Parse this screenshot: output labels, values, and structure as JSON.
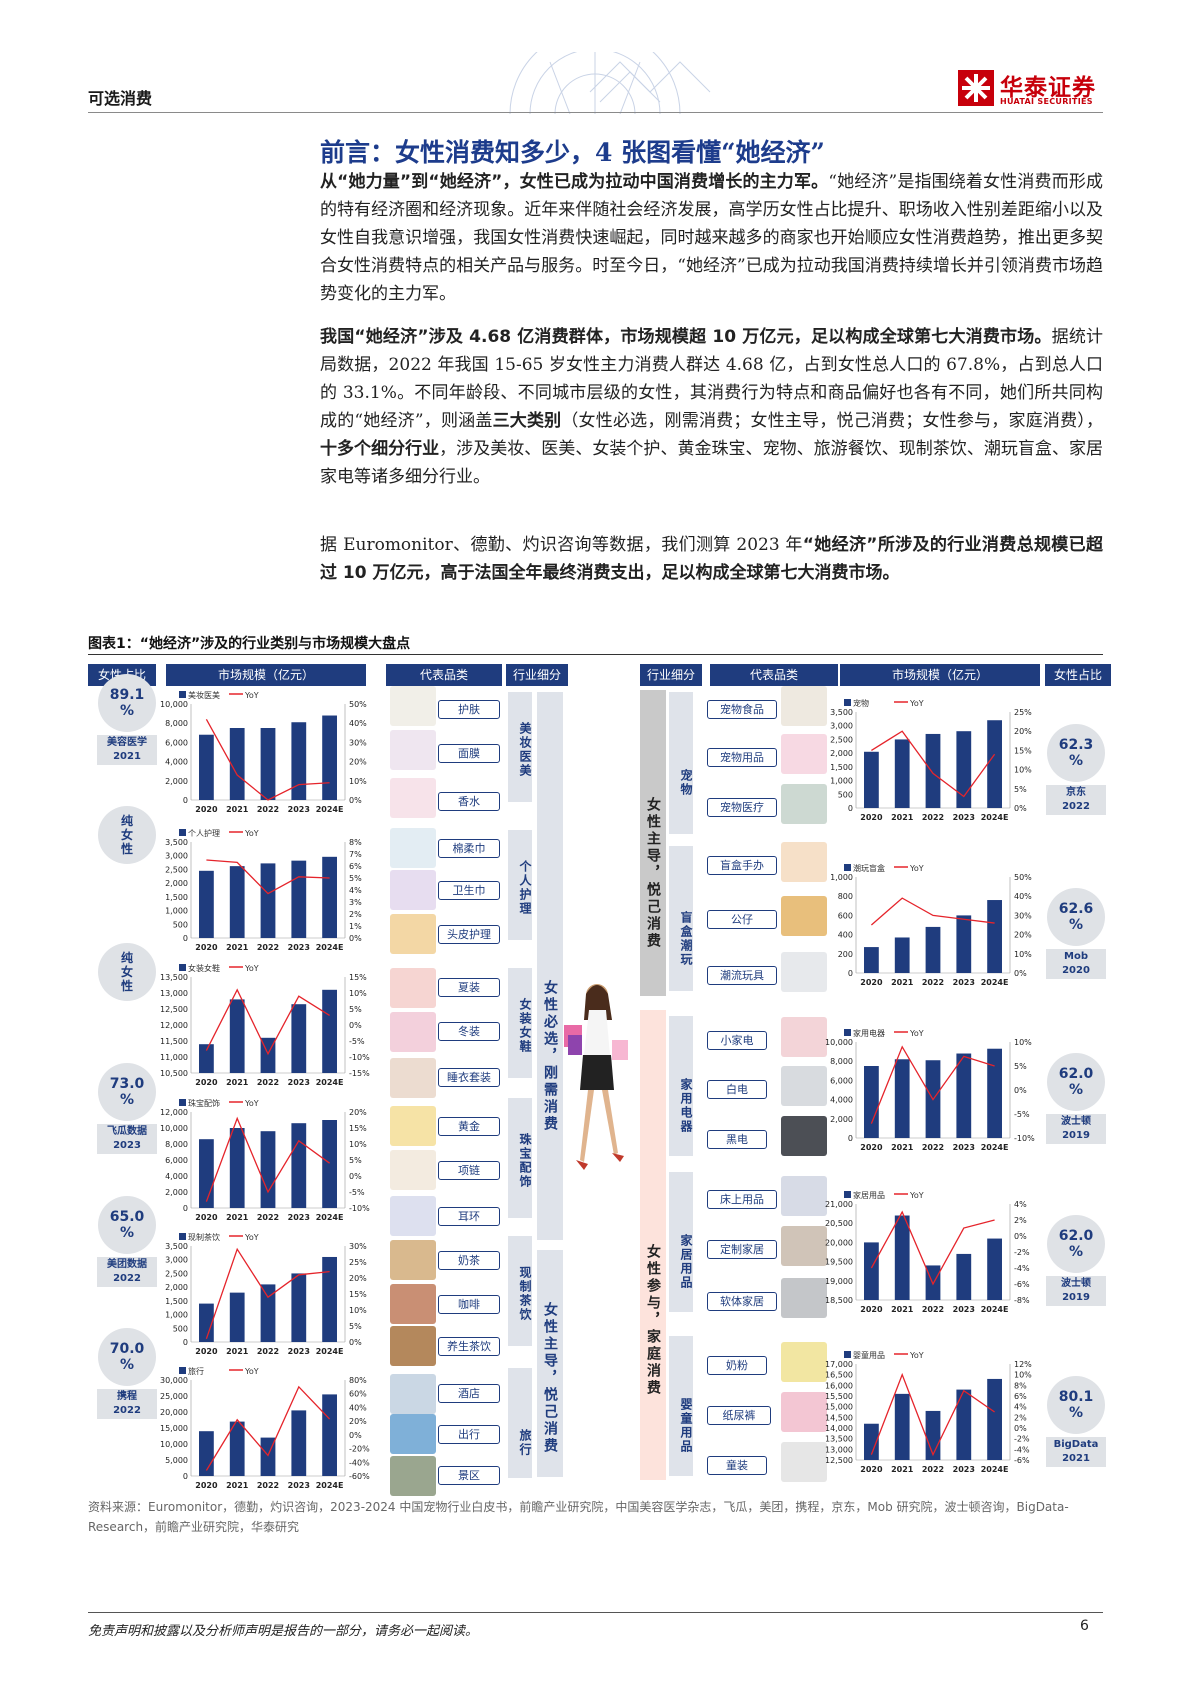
{
  "header": {
    "sector": "可选消费",
    "logo_cn": "华泰证券",
    "logo_en": "HUATAI SECURITIES"
  },
  "title": "前言：女性消费知多少，4 张图看懂“她经济”",
  "para1": {
    "bold": "从“她力量”到“她经济”，女性已成为拉动中国消费增长的主力军。",
    "text": "“她经济”是指围绕着女性消费而形成的特有经济圈和经济现象。近年来伴随社会经济发展，高学历女性占比提升、职场收入性别差距缩小以及女性自我意识增强，我国女性消费快速崛起，同时越来越多的商家也开始顺应女性消费趋势，推出更多契合女性消费特点的相关产品与服务。时至今日，“她经济”已成为拉动我国消费持续增长并引领消费市场趋势变化的主力军。"
  },
  "para2": {
    "bold1": "我国“她经济”涉及 4.68 亿消费群体，市场规模超 10 万亿元，足以构成全球第七大消费市场。",
    "text1": "据统计局数据，2022 年我国 15-65 岁女性主力消费人群达 4.68 亿，占到女性总人口的 67.8%，占到总人口的 33.1%。不同年龄段、不同城市层级的女性，其消费行为特点和商品偏好也各有不同，她们所共同构成的“她经济”，则涵盖",
    "bold2": "三大类别",
    "text2": "（女性必选，刚需消费；女性主导，悦己消费；女性参与，家庭消费），",
    "bold3": "十多个细分行业",
    "text3": "，涉及美妆、医美、女装个护、黄金珠宝、宠物、旅游餐饮、现制茶饮、潮玩盲盒、家居家电等诸多细分行业。"
  },
  "para3": {
    "text": "据 Euromonitor、德勤、灼识咨询等数据，我们测算 2023 年",
    "bold": "“她经济”所涉及的行业消费总规模已超过 10 万亿元，高于法国全年最终消费支出，足以构成全球第七大消费市场。"
  },
  "figure": {
    "caption": "图表1：“她经济”涉及的行业类别与市场规模大盘点",
    "col_heads": {
      "l_share": "女性占比",
      "l_market": "市场规模（亿元）",
      "l_product": "代表品类",
      "l_industry": "行业细分",
      "r_industry": "行业细分",
      "r_product": "代表品类",
      "r_market": "市场规模（亿元）",
      "r_share": "女性占比"
    },
    "left_cat1": "女性必选，刚需消费",
    "left_cat2": "女性主导，悦己消费",
    "right_cat1": "女性主导，悦己消费",
    "right_cat2": "女性参与，家庭消费",
    "left_shares": [
      {
        "pct": "89.1\n%",
        "src": "美容医学\n2021"
      },
      {
        "pct": "纯\n女\n性",
        "src": ""
      },
      {
        "pct": "纯\n女\n性",
        "src": ""
      },
      {
        "pct": "73.0\n%",
        "src": "飞瓜数据\n2023"
      },
      {
        "pct": "65.0\n%",
        "src": "美团数据\n2022"
      },
      {
        "pct": "70.0\n%",
        "src": "携程\n2022"
      }
    ],
    "right_shares": [
      {
        "pct": "62.3\n%",
        "src": "京东\n2022"
      },
      {
        "pct": "62.6\n%",
        "src": "Mob\n2020"
      },
      {
        "pct": "62.0\n%",
        "src": "波士顿\n2019"
      },
      {
        "pct": "62.0\n%",
        "src": "波士顿\n2019"
      },
      {
        "pct": "80.1\n%",
        "src": "BigData\n2021"
      }
    ],
    "left_industries": [
      "美妆医美",
      "个人护理",
      "女装女鞋",
      "珠宝配饰",
      "现制茶饮",
      "旅行"
    ],
    "right_industries": [
      "宠物",
      "盲盒潮玩",
      "家用电器",
      "家居用品",
      "婴童用品"
    ],
    "left_products": [
      "护肤",
      "面膜",
      "香水",
      "棉柔巾",
      "卫生巾",
      "头皮护理",
      "夏装",
      "冬装",
      "睡衣套装",
      "黄金",
      "项链",
      "耳环",
      "奶茶",
      "咖啡",
      "养生茶饮",
      "酒店",
      "出行",
      "景区"
    ],
    "right_products": [
      "宠物食品",
      "宠物用品",
      "宠物医疗",
      "盲盒手办",
      "公仔",
      "潮流玩具",
      "小家电",
      "白电",
      "黑电",
      "床上用品",
      "定制家居",
      "软体家居",
      "奶粉",
      "纸尿裤",
      "童装"
    ]
  },
  "chart_data": [
    {
      "type": "bar",
      "series_name": "美妆医美",
      "yoy_name": "YoY",
      "categories": [
        "2020",
        "2021",
        "2022",
        "2023",
        "2024E"
      ],
      "values": [
        6800,
        7500,
        7500,
        8100,
        8800
      ],
      "yoy": [
        42,
        13,
        0,
        8,
        9
      ],
      "ylim": [
        0,
        10000
      ],
      "yticks": [
        "0",
        "2,000",
        "4,000",
        "6,000",
        "8,000",
        "10,000"
      ],
      "y2lim": [
        0,
        50
      ],
      "y2ticks": [
        "0%",
        "10%",
        "20%",
        "30%",
        "40%",
        "50%"
      ]
    },
    {
      "type": "bar",
      "series_name": "个人护理",
      "yoy_name": "YoY",
      "categories": [
        "2020",
        "2021",
        "2022",
        "2023",
        "2024E"
      ],
      "values": [
        2450,
        2620,
        2720,
        2820,
        2960
      ],
      "yoy": [
        6.5,
        6.3,
        3.7,
        5.1,
        5
      ],
      "ylim": [
        0,
        3500
      ],
      "yticks": [
        "0",
        "500",
        "1,000",
        "1,500",
        "2,000",
        "2,500",
        "3,000",
        "3,500"
      ],
      "y2lim": [
        0,
        8
      ],
      "y2ticks": [
        "0%",
        "1%",
        "2%",
        "3%",
        "4%",
        "5%",
        "6%",
        "7%",
        "8%"
      ]
    },
    {
      "type": "bar",
      "series_name": "女装女鞋",
      "yoy_name": "YoY",
      "categories": [
        "2020",
        "2021",
        "2022",
        "2023",
        "2024E"
      ],
      "values": [
        11400,
        12800,
        11600,
        12650,
        13100
      ],
      "yoy": [
        -8,
        11,
        -9,
        9,
        3
      ],
      "ylim": [
        10500,
        13500
      ],
      "yticks": [
        "10,500",
        "11,000",
        "11,500",
        "12,000",
        "12,500",
        "13,000",
        "13,500"
      ],
      "y2lim": [
        -15,
        15
      ],
      "y2ticks": [
        "-15%",
        "-10%",
        "-5%",
        "0%",
        "5%",
        "10%",
        "15%"
      ]
    },
    {
      "type": "bar",
      "series_name": "珠宝配饰",
      "yoy_name": "YoY",
      "categories": [
        "2020",
        "2021",
        "2022",
        "2023",
        "2024E"
      ],
      "values": [
        8600,
        10000,
        9600,
        10600,
        11000
      ],
      "yoy": [
        -8,
        18,
        -5,
        11,
        4
      ],
      "ylim": [
        0,
        12000
      ],
      "yticks": [
        "0",
        "2,000",
        "4,000",
        "6,000",
        "8,000",
        "10,000",
        "12,000"
      ],
      "y2lim": [
        -10,
        20
      ],
      "y2ticks": [
        "-10%",
        "-5%",
        "0%",
        "5%",
        "10%",
        "15%",
        "20%"
      ]
    },
    {
      "type": "bar",
      "series_name": "现制茶饮",
      "yoy_name": "YoY",
      "categories": [
        "2020",
        "2021",
        "2022",
        "2023",
        "2024E"
      ],
      "values": [
        1400,
        1800,
        2100,
        2500,
        3100
      ],
      "yoy": [
        1,
        29,
        14,
        21,
        22
      ],
      "ylim": [
        0,
        3500
      ],
      "yticks": [
        "0",
        "500",
        "1,000",
        "1,500",
        "2,000",
        "2,500",
        "3,000",
        "3,500"
      ],
      "y2lim": [
        0,
        30
      ],
      "y2ticks": [
        "0%",
        "5%",
        "10%",
        "15%",
        "20%",
        "25%",
        "30%"
      ]
    },
    {
      "type": "bar",
      "series_name": "旅行",
      "yoy_name": "YoY",
      "categories": [
        "2020",
        "2021",
        "2022",
        "2023",
        "2024E"
      ],
      "values": [
        14000,
        17000,
        12000,
        20500,
        25500
      ],
      "yoy": [
        -52,
        22,
        -30,
        70,
        23
      ],
      "ylim": [
        0,
        30000
      ],
      "yticks": [
        "0",
        "5,000",
        "10,000",
        "15,000",
        "20,000",
        "25,000",
        "30,000"
      ],
      "y2lim": [
        -60,
        80
      ],
      "y2ticks": [
        "-60%",
        "-40%",
        "-20%",
        "0%",
        "20%",
        "40%",
        "60%",
        "80%"
      ]
    },
    {
      "type": "bar",
      "series_name": "宠物",
      "yoy_name": "YoY",
      "categories": [
        "2020",
        "2021",
        "2022",
        "2023",
        "2024E"
      ],
      "values": [
        2050,
        2500,
        2700,
        2800,
        3200
      ],
      "yoy": [
        15,
        20,
        9,
        3,
        14
      ],
      "ylim": [
        0,
        3500
      ],
      "yticks": [
        "0",
        "500",
        "1,000",
        "1,500",
        "2,000",
        "2,500",
        "3,000",
        "3,500"
      ],
      "y2lim": [
        0,
        25
      ],
      "y2ticks": [
        "0%",
        "5%",
        "10%",
        "15%",
        "20%",
        "25%"
      ]
    },
    {
      "type": "bar",
      "series_name": "潮玩盲盒",
      "yoy_name": "YoY",
      "categories": [
        "2020",
        "2021",
        "2022",
        "2023",
        "2024E"
      ],
      "values": [
        270,
        370,
        480,
        600,
        760
      ],
      "yoy": [
        25,
        39,
        30,
        28,
        26
      ],
      "ylim": [
        0,
        1000
      ],
      "yticks": [
        "0",
        "200",
        "400",
        "600",
        "800",
        "1,000"
      ],
      "y2lim": [
        0,
        50
      ],
      "y2ticks": [
        "0%",
        "10%",
        "20%",
        "30%",
        "40%",
        "50%"
      ]
    },
    {
      "type": "bar",
      "series_name": "家用电器",
      "yoy_name": "YoY",
      "categories": [
        "2020",
        "2021",
        "2022",
        "2023",
        "2024E"
      ],
      "values": [
        7500,
        8200,
        8100,
        8800,
        9300
      ],
      "yoy": [
        -7,
        9,
        -2,
        7,
        5
      ],
      "ylim": [
        0,
        10000
      ],
      "yticks": [
        "0",
        "2,000",
        "4,000",
        "6,000",
        "8,000",
        "10,000"
      ],
      "y2lim": [
        -10,
        10
      ],
      "y2ticks": [
        "-10%",
        "-5%",
        "0%",
        "5%",
        "10%"
      ]
    },
    {
      "type": "bar",
      "series_name": "家居用品",
      "yoy_name": "YoY",
      "categories": [
        "2020",
        "2021",
        "2022",
        "2023",
        "2024E"
      ],
      "values": [
        20000,
        20700,
        19400,
        19700,
        20100
      ],
      "yoy": [
        -4,
        3,
        -6,
        1,
        2
      ],
      "ylim": [
        18500,
        21000
      ],
      "yticks": [
        "18,500",
        "19,000",
        "19,500",
        "20,000",
        "20,500",
        "21,000"
      ],
      "y2lim": [
        -8,
        4
      ],
      "y2ticks": [
        "-8%",
        "-6%",
        "-4%",
        "-2%",
        "0%",
        "2%",
        "4%"
      ]
    },
    {
      "type": "bar",
      "series_name": "婴童用品",
      "yoy_name": "YoY",
      "categories": [
        "2020",
        "2021",
        "2022",
        "2023",
        "2024E"
      ],
      "values": [
        14200,
        15600,
        14800,
        15800,
        16300
      ],
      "yoy": [
        -5,
        10,
        -5,
        7,
        3
      ],
      "ylim": [
        12500,
        17000
      ],
      "yticks": [
        "12,500",
        "13,000",
        "13,500",
        "14,000",
        "14,500",
        "15,000",
        "15,500",
        "16,000",
        "16,500",
        "17,000"
      ],
      "y2lim": [
        -6,
        12
      ],
      "y2ticks": [
        "-6%",
        "-4%",
        "-2%",
        "0%",
        "2%",
        "4%",
        "6%",
        "8%",
        "10%",
        "12%"
      ]
    }
  ],
  "footer": {
    "source": "资料来源：Euromonitor，德勤，灼识咨询，2023-2024 中国宠物行业白皮书，前瞻产业研究院，中国美容医学杂志，飞瓜，美团，携程，京东，Mob 研究院，波士顿咨询，BigData-Research，前瞻产业研究院，华泰研究",
    "disclaimer": "免责声明和披露以及分析师声明是报告的一部分，请务必一起阅读。",
    "page": "6"
  },
  "colors": {
    "navy": "#1f3c7e",
    "red": "#e5242b",
    "brand_red": "#c7000b",
    "chip_bg": "#dfe2e6"
  }
}
